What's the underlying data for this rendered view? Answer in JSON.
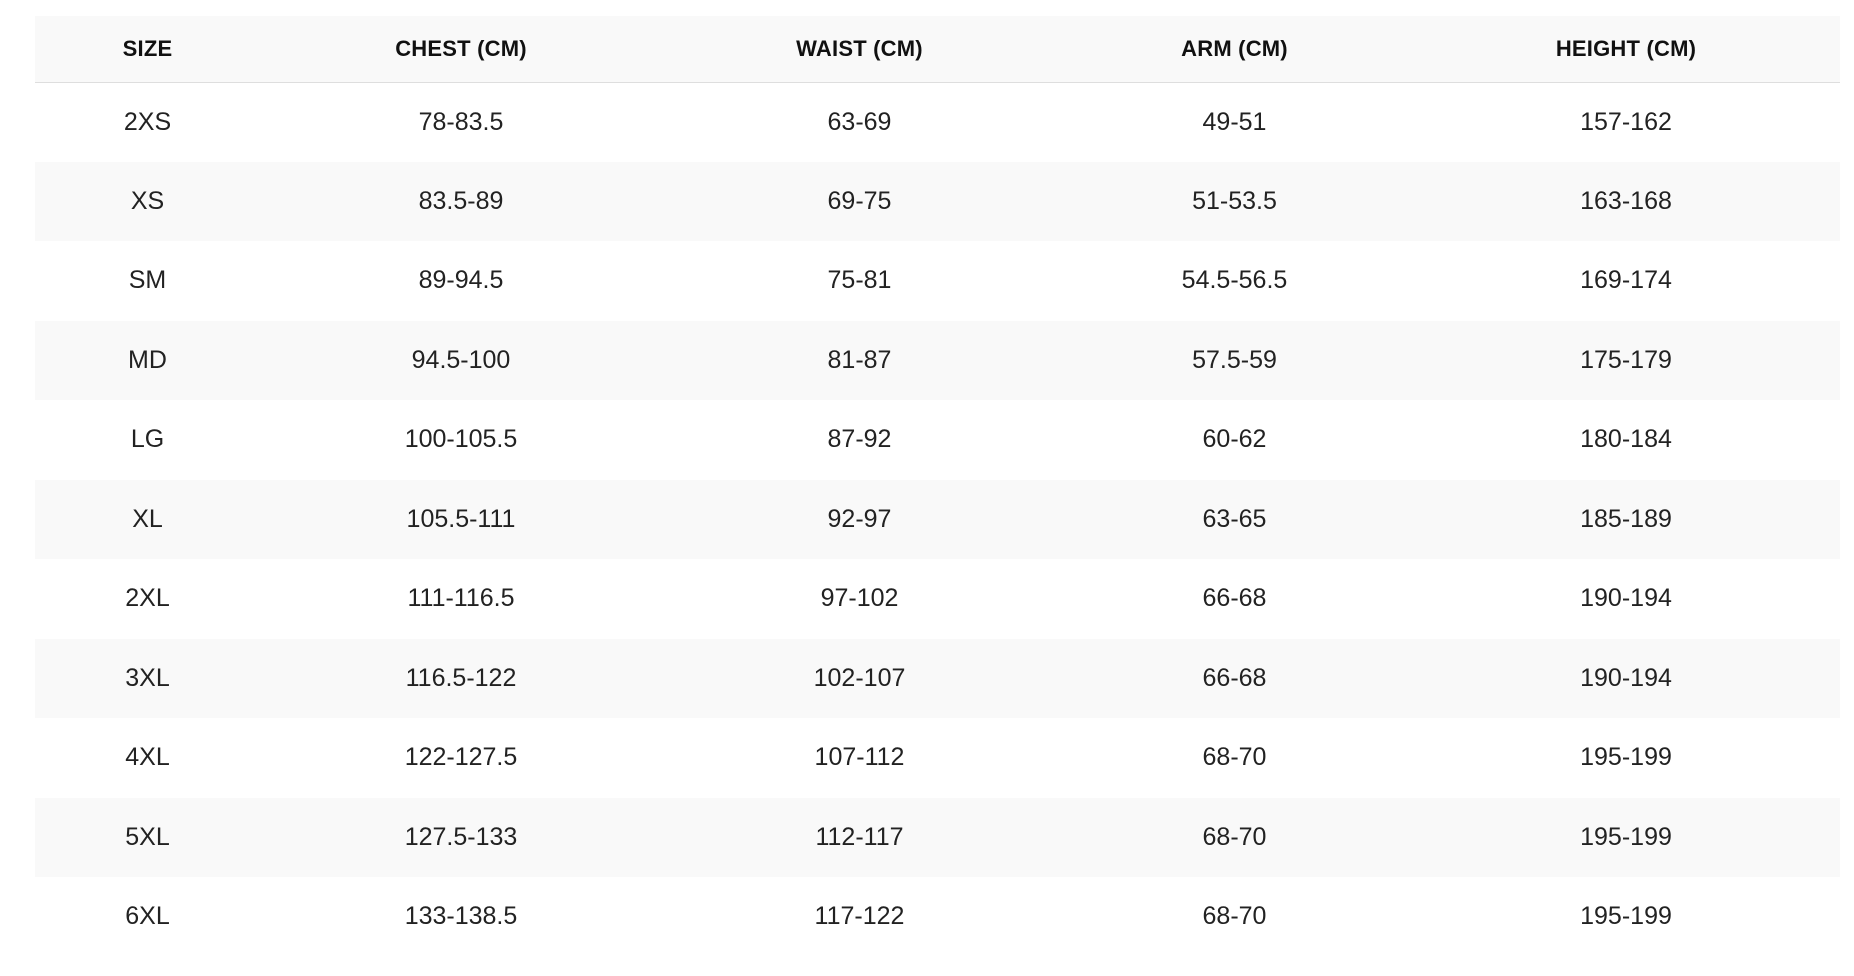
{
  "size_chart": {
    "headers": [
      "SIZE",
      "CHEST (CM)",
      "WAIST (CM)",
      "ARM (CM)",
      "HEIGHT (CM)"
    ],
    "rows": [
      [
        "2XS",
        "78-83.5",
        "63-69",
        "49-51",
        "157-162"
      ],
      [
        "XS",
        "83.5-89",
        "69-75",
        "51-53.5",
        "163-168"
      ],
      [
        "SM",
        "89-94.5",
        "75-81",
        "54.5-56.5",
        "169-174"
      ],
      [
        "MD",
        "94.5-100",
        "81-87",
        "57.5-59",
        "175-179"
      ],
      [
        "LG",
        "100-105.5",
        "87-92",
        "60-62",
        "180-184"
      ],
      [
        "XL",
        "105.5-111",
        "92-97",
        "63-65",
        "185-189"
      ],
      [
        "2XL",
        "111-116.5",
        "97-102",
        "66-68",
        "190-194"
      ],
      [
        "3XL",
        "116.5-122",
        "102-107",
        "66-68",
        "190-194"
      ],
      [
        "4XL",
        "122-127.5",
        "107-112",
        "68-70",
        "195-199"
      ],
      [
        "5XL",
        "127.5-133",
        "112-117",
        "68-70",
        "195-199"
      ],
      [
        "6XL",
        "133-138.5",
        "117-122",
        "68-70",
        "195-199"
      ]
    ]
  }
}
